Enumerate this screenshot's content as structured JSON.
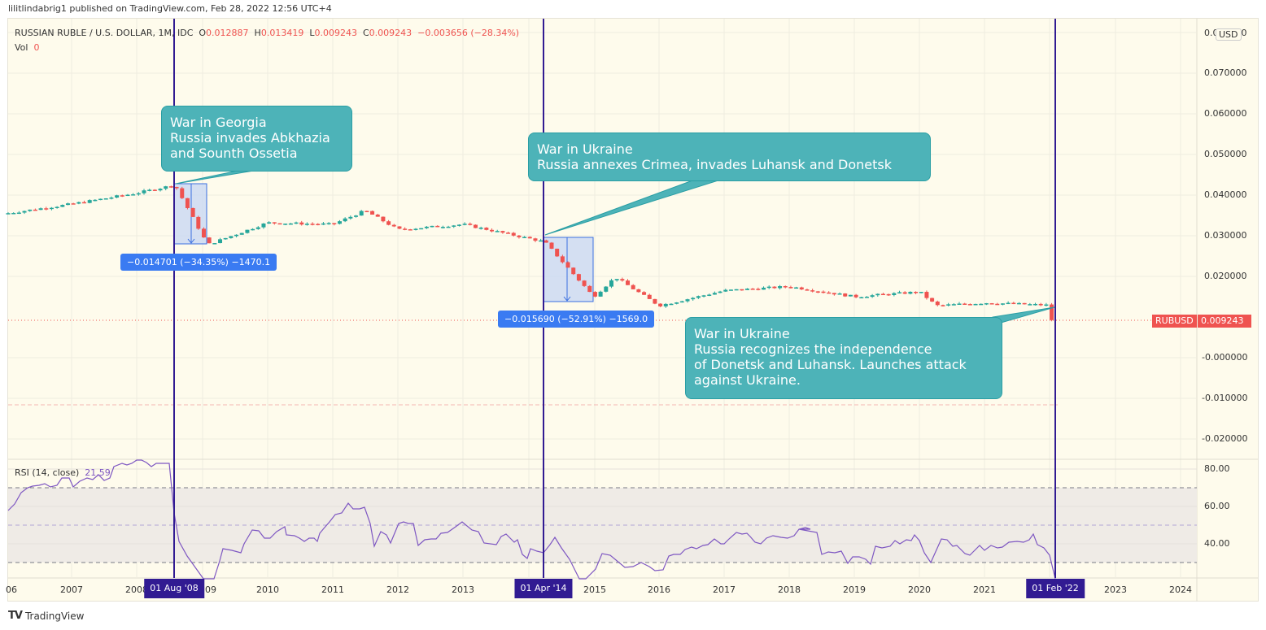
{
  "publisher_line": "lilitlindabrig1 published on TradingView.com, Feb 28, 2022 12:56 UTC+4",
  "legend": {
    "symbol": "RUSSIAN RUBLE / U.S. DOLLAR, 1M, IDC",
    "open_label": "O",
    "open": "0.012887",
    "high_label": "H",
    "high": "0.013419",
    "low_label": "L",
    "low": "0.009243",
    "close_label": "C",
    "close": "0.009243",
    "change": "−0.003656 (−28.34%)",
    "vol_label": "Vol",
    "vol": "0"
  },
  "currency_badge": "USD",
  "price_tag": {
    "symbol": "RUBUSD",
    "value": "0.009243",
    "color": "#ef5350"
  },
  "rsi_legend": {
    "label": "RSI (14, close)",
    "value": "21.59"
  },
  "footer": {
    "brand": "TradingView"
  },
  "colors": {
    "up": "#26a69a",
    "down": "#ef5350",
    "rsi": "#7e57c2",
    "event_line": "#311b92",
    "callout": "#4db3b8",
    "measure": "#3a7bf2",
    "background": "#fefbec"
  },
  "callouts": [
    {
      "text": "War in Georgia\nRussia invades Abkhazia\nand Sounth Ossetia"
    },
    {
      "text": "War in Ukraine\nRussia annexes Crimea, invades Luhansk and Donetsk"
    },
    {
      "text": "War in Ukraine\nRussia recognizes the independence\nof Donetsk and Luhansk. Launches attack\nagainst Ukraine."
    }
  ],
  "measurements": [
    {
      "text": "−0.014701 (−34.35%) −1470.1"
    },
    {
      "text": "−0.015690 (−52.91%) −1569.0"
    }
  ],
  "event_labels": [
    "01 Aug '08",
    "01 Apr '14",
    "01 Feb '22"
  ],
  "chart_data": [
    {
      "type": "candlestick",
      "title": "RUSSIAN RUBLE / U.S. DOLLAR, 1M, IDC",
      "ylabel": "USD",
      "ylim": [
        -0.025,
        0.075
      ],
      "y_ticks": [
        "0.070000",
        "0.060000",
        "0.050000",
        "0.040000",
        "0.030000",
        "0.020000",
        "0.009243",
        "-0.000000",
        "-0.010000",
        "-0.020000"
      ],
      "x_ticks": [
        "06",
        "2007",
        "2008",
        "01 Aug '08",
        "09",
        "2010",
        "2011",
        "2012",
        "2013",
        "01 Apr '14",
        "2015",
        "2016",
        "2017",
        "2018",
        "2019",
        "2020",
        "2021",
        "01 Feb '22",
        "2023",
        "2024"
      ],
      "grid": true,
      "approx_close_by_year_start": {
        "2006": 0.0355,
        "2007": 0.0378,
        "2008": 0.0405,
        "2008-08": 0.0425,
        "2009-02": 0.0278,
        "2010": 0.0332,
        "2011": 0.0328,
        "2011-07": 0.0362,
        "2012": 0.0315,
        "2013": 0.0328,
        "2014-04": 0.0285,
        "2015-01": 0.015,
        "2015-05": 0.0198,
        "2016-01": 0.0128,
        "2017": 0.0165,
        "2018": 0.0175,
        "2019": 0.015,
        "2020": 0.0162,
        "2020-04": 0.0128,
        "2021": 0.0135,
        "2022-01": 0.0129,
        "2022-02": 0.009243
      },
      "last": {
        "open": 0.012887,
        "high": 0.013419,
        "low": 0.009243,
        "close": 0.009243,
        "change": -0.003656,
        "change_pct": -28.34
      },
      "events": [
        {
          "date": "01 Aug '08",
          "label": "War in Georgia",
          "measure_change": -0.014701,
          "measure_pct": -34.35,
          "measure_ticks": -1470.1
        },
        {
          "date": "01 Apr '14",
          "label": "War in Ukraine (Crimea)",
          "measure_change": -0.01569,
          "measure_pct": -52.91,
          "measure_ticks": -1569.0
        },
        {
          "date": "01 Feb '22",
          "label": "War in Ukraine (invasion)"
        }
      ]
    },
    {
      "type": "line",
      "title": "RSI (14, close)",
      "ylim": [
        20,
        85
      ],
      "y_ticks": [
        "80.00",
        "60.00",
        "40.00"
      ],
      "bands": {
        "upper": 70,
        "middle": 50,
        "lower": 30
      },
      "last_value": 21.59,
      "approx_values": {
        "2006": 58,
        "2006-06": 70,
        "2007": 72,
        "2008": 82,
        "2008-07": 84,
        "2008-08": 57,
        "2009-01": 15,
        "2009-06": 38,
        "2010": 45,
        "2011": 44,
        "2011-07": 62,
        "2011-10": 45,
        "2012": 43,
        "2013": 52,
        "2013-06": 40,
        "2014-04": 38,
        "2014-12": 18,
        "2015-06": 44,
        "2016": 28,
        "2016-06": 42,
        "2017": 50,
        "2018": 52,
        "2018-06": 40,
        "2019": 40,
        "2019-06": 48,
        "2020": 53,
        "2020-03": 30,
        "2021": 42,
        "2021-09": 51,
        "2022-02": 21.59
      }
    }
  ]
}
